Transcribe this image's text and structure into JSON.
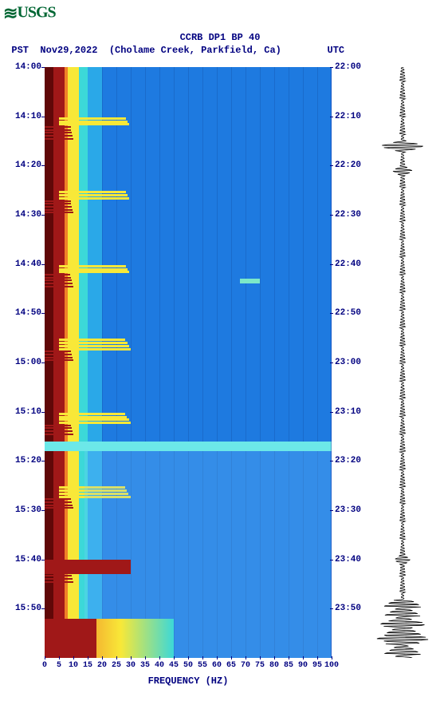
{
  "logo_text": "USGS",
  "title": "CCRB DP1 BP 40",
  "subtitle_pst": "PST",
  "subtitle_date": "Nov29,2022",
  "subtitle_loc": "(Cholame Creek, Parkfield, Ca)",
  "subtitle_utc": "UTC",
  "chart": {
    "type": "spectrogram",
    "xlabel": "FREQUENCY (HZ)",
    "xlim": [
      0,
      100
    ],
    "xticks": [
      0,
      5,
      10,
      15,
      20,
      25,
      30,
      35,
      40,
      45,
      50,
      55,
      60,
      65,
      70,
      75,
      80,
      85,
      90,
      95,
      100
    ],
    "left_yticks": [
      "14:00",
      "14:10",
      "14:20",
      "14:30",
      "14:40",
      "14:50",
      "15:00",
      "15:10",
      "15:20",
      "15:30",
      "15:40",
      "15:50"
    ],
    "right_yticks": [
      "22:00",
      "22:10",
      "22:20",
      "22:30",
      "22:40",
      "22:50",
      "23:00",
      "23:10",
      "23:20",
      "23:30",
      "23:40",
      "23:50"
    ],
    "ylim_minutes": [
      0,
      120
    ],
    "ytick_step_min": 10,
    "colors": {
      "bg": "#1e7ae0",
      "bg_dark": "#1560c0",
      "low_cyan": "#3cd8d8",
      "band_yellow": "#f8e838",
      "band_orange": "#f08028",
      "hot_red": "#a01818",
      "deep_red": "#600808",
      "text": "#000080",
      "wave": "#000000"
    },
    "column_boundaries_hz": [
      0,
      3,
      5,
      7,
      8,
      10,
      12,
      15,
      20,
      28,
      100
    ],
    "column_colors": [
      "#600808",
      "#a01818",
      "#a01818",
      "#f08028",
      "#f8e838",
      "#f8e838",
      "#3cd8d8",
      "#2aa8e8",
      "#1e7ae0",
      "#1e7ae0"
    ],
    "events": [
      {
        "t_min": 76,
        "dur_min": 2,
        "freq_hi": 100,
        "color": "#6ce8e8",
        "desc": "broadband bright streak"
      },
      {
        "t_min": 100,
        "dur_min": 3,
        "freq_hi": 30,
        "color": "#a01818",
        "desc": "low-freq burst"
      },
      {
        "t_min": 113,
        "dur_min": 7,
        "freq_hi": 40,
        "color": "#a01818",
        "desc": "bottom low-freq energy"
      },
      {
        "t_min": 43,
        "dur_min": 1,
        "freq_hi": 75,
        "freq_lo": 68,
        "color": "#7ce8c8",
        "desc": "mid isolated blip"
      }
    ],
    "waveform": {
      "baseline_amp": 2,
      "spikes": [
        {
          "t_min": 16,
          "amp": 28
        },
        {
          "t_min": 21,
          "amp": 12
        },
        {
          "t_min": 100,
          "amp": 10
        },
        {
          "t_min": 113,
          "amp": 30
        },
        {
          "t_min": 116,
          "amp": 35
        }
      ]
    }
  }
}
